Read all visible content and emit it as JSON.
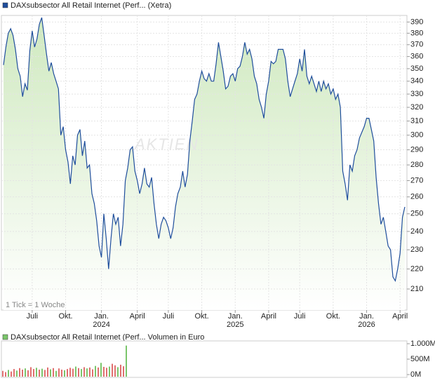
{
  "chart_data": [
    {
      "type": "line",
      "title": "DAXsubsector All Retail Internet (Perf... (Xetra)",
      "legend_color": "#1f4e9c",
      "color": "#1f4e9c",
      "log_scale": true,
      "grid": true,
      "annotation": "1 Tick = 1 Woche",
      "watermark": "AKTIEN",
      "values": [
        353,
        368,
        380,
        384,
        378,
        366,
        350,
        344,
        328,
        338,
        333,
        365,
        382,
        368,
        375,
        388,
        394,
        378,
        362,
        348,
        355,
        346,
        340,
        334,
        300,
        306,
        290,
        282,
        268,
        286,
        280,
        300,
        304,
        286,
        296,
        278,
        280,
        262,
        256,
        246,
        232,
        226,
        250,
        236,
        220,
        236,
        250,
        244,
        248,
        232,
        244,
        270,
        278,
        290,
        292,
        276,
        270,
        262,
        268,
        278,
        268,
        266,
        272,
        256,
        244,
        236,
        244,
        248,
        246,
        242,
        236,
        242,
        254,
        262,
        266,
        276,
        266,
        274,
        296,
        310,
        326,
        330,
        340,
        348,
        342,
        340,
        346,
        340,
        340,
        354,
        372,
        360,
        348,
        334,
        336,
        344,
        346,
        340,
        350,
        352,
        360,
        372,
        362,
        366,
        358,
        344,
        338,
        326,
        320,
        312,
        330,
        340,
        356,
        354,
        356,
        366,
        366,
        366,
        358,
        340,
        328,
        334,
        340,
        346,
        358,
        348,
        366,
        344,
        338,
        344,
        338,
        332,
        340,
        332,
        340,
        334,
        338,
        330,
        334,
        326,
        330,
        320,
        276,
        268,
        258,
        280,
        276,
        286,
        290,
        298,
        302,
        306,
        312,
        312,
        304,
        296,
        272,
        256,
        244,
        248,
        240,
        232,
        230,
        216,
        214,
        220,
        228,
        248,
        254
      ],
      "xlim": [
        0,
        168
      ],
      "ylim": [
        200,
        396
      ],
      "yticks": [
        210,
        220,
        230,
        240,
        250,
        260,
        270,
        280,
        290,
        300,
        310,
        320,
        330,
        340,
        350,
        360,
        370,
        380,
        390
      ],
      "xticks": [
        {
          "value": 12,
          "label": "Juli"
        },
        {
          "value": 26,
          "label": "Okt."
        },
        {
          "value": 41,
          "label": "Jan."
        },
        {
          "value": 56,
          "label": "April"
        },
        {
          "value": 69,
          "label": "Juli"
        },
        {
          "value": 83,
          "label": "Okt."
        },
        {
          "value": 97,
          "label": "Jan."
        },
        {
          "value": 111,
          "label": "April"
        },
        {
          "value": 124,
          "label": "Juli"
        },
        {
          "value": 138,
          "label": "Okt."
        },
        {
          "value": 152,
          "label": "Jan."
        },
        {
          "value": 166,
          "label": "April"
        }
      ],
      "year_labels": [
        {
          "value": 41,
          "label": "2024"
        },
        {
          "value": 97,
          "label": "2025"
        },
        {
          "value": 152,
          "label": "2026"
        }
      ]
    },
    {
      "type": "bar",
      "title": "DAXsubsector All Retail Internet (Perf... Volumen in Euro",
      "legend_color": "#7bc66b",
      "values": [
        120,
        80,
        150,
        100,
        180,
        130,
        210,
        160,
        200,
        140,
        240,
        180,
        220,
        160,
        190,
        150,
        230,
        170,
        210,
        120,
        200,
        160,
        140,
        180,
        220,
        190,
        260,
        210,
        180,
        240,
        200,
        230,
        170,
        280,
        230,
        380,
        250,
        220,
        260,
        350,
        300,
        240,
        320,
        270,
        940
      ],
      "colors": [
        "#e07070",
        "#e07070",
        "#7bc66b",
        "#e07070",
        "#e07070",
        "#7bc66b",
        "#e07070",
        "#e07070",
        "#7bc66b",
        "#e07070",
        "#e07070",
        "#e07070",
        "#7bc66b",
        "#e07070",
        "#7bc66b",
        "#e07070",
        "#e07070",
        "#7bc66b",
        "#e07070",
        "#7bc66b",
        "#e07070",
        "#e07070",
        "#7bc66b",
        "#e07070",
        "#e07070",
        "#e07070",
        "#7bc66b",
        "#e07070",
        "#7bc66b",
        "#e07070",
        "#7bc66b",
        "#e07070",
        "#e07070",
        "#7bc66b",
        "#e07070",
        "#7bc66b",
        "#e07070",
        "#e07070",
        "#7bc66b",
        "#e07070",
        "#e07070",
        "#7bc66b",
        "#e07070",
        "#e07070",
        "#7bc66b"
      ],
      "ylim": [
        0,
        1000
      ],
      "yticks": [
        {
          "value": 0,
          "label": "0M"
        },
        {
          "value": 500,
          "label": "500M"
        },
        {
          "value": 1000,
          "label": "1.000M"
        }
      ]
    }
  ]
}
